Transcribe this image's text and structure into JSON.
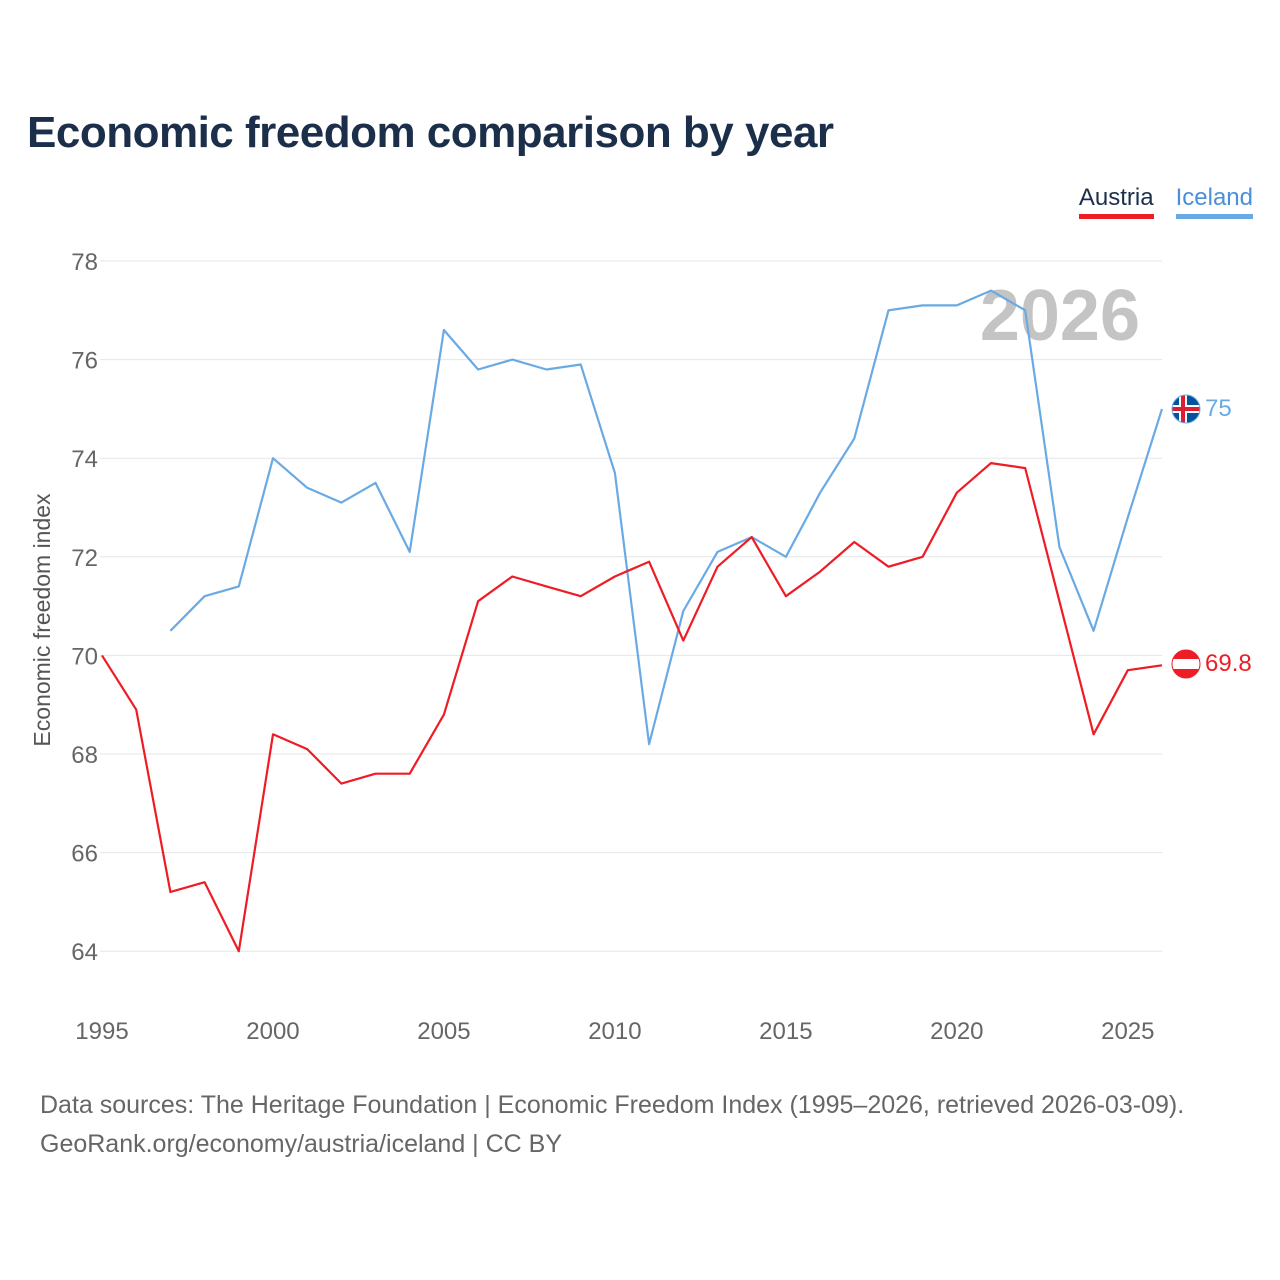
{
  "colors": {
    "austria": "#ee1c25",
    "iceland": "#6aaae4",
    "grid": "#e6e6e6",
    "title": "#1c2f4a",
    "year": "#c4c4c4"
  },
  "legend": {
    "austria": "Austria",
    "iceland": "Iceland"
  },
  "end_labels": {
    "austria": "69.8",
    "iceland": "75"
  },
  "year_watermark": "2026",
  "footer": {
    "sources": "Data sources: The Heritage Foundation | Economic Freedom Index (1995–2026, retrieved 2026-03-09).",
    "credit": "GeoRank.org/economy/austria/iceland | CC BY"
  },
  "chart_data": {
    "type": "line",
    "title": "Economic freedom comparison by year",
    "xlabel": "",
    "ylabel": "Economic freedom index",
    "xlim": [
      1995,
      2026
    ],
    "ylim": [
      63,
      78
    ],
    "xticks": [
      1995,
      2000,
      2005,
      2010,
      2015,
      2020,
      2025
    ],
    "yticks": [
      64,
      66,
      68,
      70,
      72,
      74,
      76,
      78
    ],
    "legend_position": "top-right",
    "series": [
      {
        "name": "Austria",
        "color": "#ee1c25",
        "x": [
          1995,
          1996,
          1997,
          1998,
          1999,
          2000,
          2001,
          2002,
          2003,
          2004,
          2005,
          2006,
          2007,
          2008,
          2009,
          2010,
          2011,
          2012,
          2013,
          2014,
          2015,
          2016,
          2017,
          2018,
          2019,
          2020,
          2021,
          2022,
          2023,
          2024,
          2025,
          2026
        ],
        "values": [
          70.0,
          68.9,
          65.2,
          65.4,
          64.0,
          68.4,
          68.1,
          67.4,
          67.6,
          67.6,
          68.8,
          71.1,
          71.6,
          71.4,
          71.2,
          71.6,
          71.9,
          70.3,
          71.8,
          72.4,
          71.2,
          71.7,
          72.3,
          71.8,
          72.0,
          73.3,
          73.9,
          73.8,
          71.1,
          68.4,
          69.7,
          69.8
        ]
      },
      {
        "name": "Iceland",
        "color": "#6aaae4",
        "x": [
          1997,
          1998,
          1999,
          2000,
          2001,
          2002,
          2003,
          2004,
          2005,
          2006,
          2007,
          2008,
          2009,
          2010,
          2011,
          2012,
          2013,
          2014,
          2015,
          2016,
          2017,
          2018,
          2019,
          2020,
          2021,
          2022,
          2023,
          2024,
          2025,
          2026
        ],
        "values": [
          70.5,
          71.2,
          71.4,
          74.0,
          73.4,
          73.1,
          73.5,
          72.1,
          76.6,
          75.8,
          76.0,
          75.8,
          75.9,
          73.7,
          68.2,
          70.9,
          72.1,
          72.4,
          72.0,
          73.3,
          74.4,
          77.0,
          77.1,
          77.1,
          77.4,
          77.0,
          72.2,
          70.5,
          72.8,
          75.0
        ]
      }
    ]
  }
}
